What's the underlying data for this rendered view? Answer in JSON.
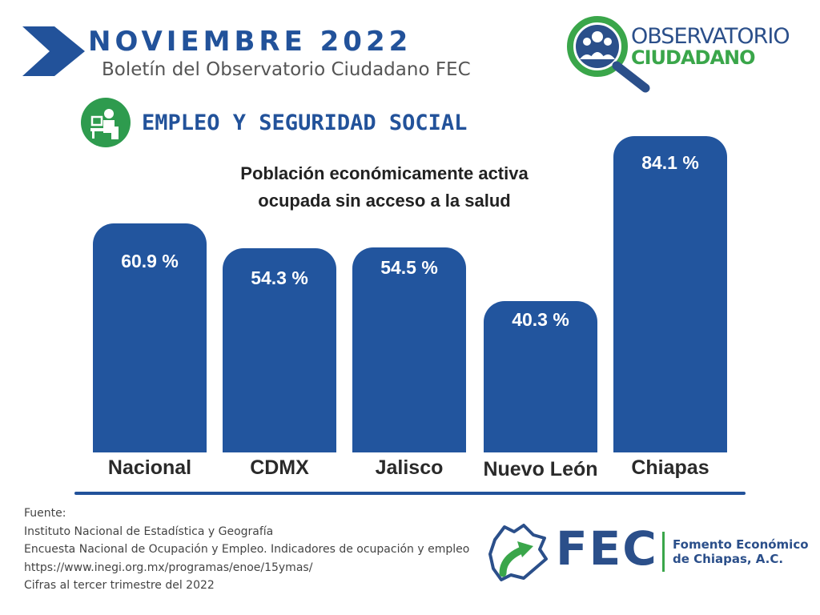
{
  "header": {
    "month": "NOVIEMBRE  2022",
    "bulletin": "Boletín del Observatorio Ciudadano FEC"
  },
  "observatorio_logo": {
    "line1": "OBSERVATORIO",
    "line2": "CIUDADANO",
    "icon": "magnifier-people-icon"
  },
  "section": {
    "title": "EMPLEO Y SEGURIDAD SOCIAL",
    "icon": "worker-desk-icon"
  },
  "chart_data": {
    "type": "bar",
    "title_lines": [
      "Población económicamente activa",
      "ocupada sin acceso a la salud"
    ],
    "categories": [
      "Nacional",
      "CDMX",
      "Jalisco",
      "Nuevo León",
      "Chiapas"
    ],
    "values": [
      60.9,
      54.3,
      54.5,
      40.3,
      84.1
    ],
    "value_labels": [
      "60.9 %",
      "54.3 %",
      "54.5 %",
      "40.3 %",
      "84.1 %"
    ],
    "unit": "%",
    "xlabel": "",
    "ylabel": "",
    "grid": false,
    "legend": "none",
    "bar_color": "#22559e"
  },
  "source": {
    "lines": [
      "Fuente:",
      "Instituto Nacional de Estadística y Geografía",
      "Encuesta Nacional de Ocupación y Empleo. Indicadores de ocupación y empleo",
      "https://www.inegi.org.mx/programas/enoe/15ymas/",
      "Cifras al tercer trimestre del 2022"
    ]
  },
  "fec_logo": {
    "acronym": "FEC",
    "name_line1": "Fomento Económico",
    "name_line2": "de Chiapas, A.C.",
    "icon": "chiapas-map-arrow-icon"
  },
  "colors": {
    "brand_blue": "#22529a",
    "brand_green": "#3aa64a"
  }
}
